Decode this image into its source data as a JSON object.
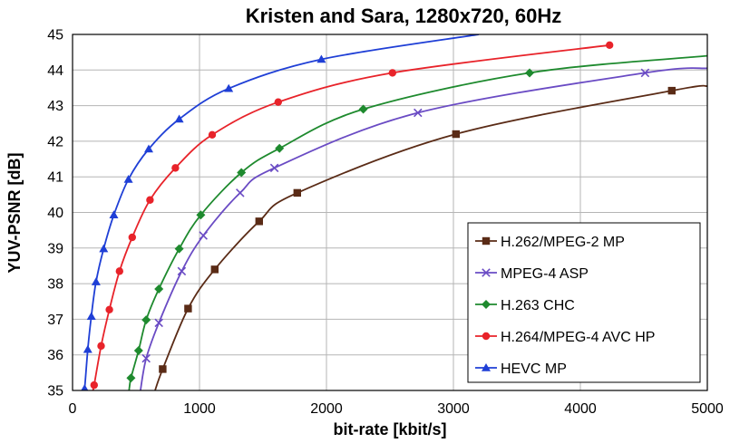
{
  "chart_data": {
    "type": "line",
    "title": "Kristen and Sara, 1280x720, 60Hz",
    "xlabel": "bit-rate [kbit/s]",
    "ylabel": "YUV-PSNR [dB]",
    "xlim": [
      0,
      5000
    ],
    "ylim": [
      35,
      45
    ],
    "xticks": [
      "0",
      "1000",
      "2000",
      "3000",
      "4000",
      "5000"
    ],
    "yticks": [
      "35",
      "36",
      "37",
      "38",
      "39",
      "40",
      "41",
      "42",
      "43",
      "44",
      "45"
    ],
    "grid": true,
    "legend_position": "bottom-right",
    "series": [
      {
        "name": "H.262/MPEG-2 MP",
        "color": "#5a2b16",
        "marker": "square",
        "points": [
          [
            710,
            35.6
          ],
          [
            910,
            37.3
          ],
          [
            1120,
            38.4
          ],
          [
            1470,
            39.75
          ],
          [
            1770,
            40.55
          ],
          [
            3020,
            42.2
          ],
          [
            4720,
            43.42
          ]
        ],
        "curve_start": [
          650,
          35.0
        ],
        "curve_end": [
          5000,
          43.55
        ]
      },
      {
        "name": "MPEG-4 ASP",
        "color": "#6a4bc4",
        "marker": "x",
        "points": [
          [
            580,
            35.9
          ],
          [
            680,
            36.9
          ],
          [
            860,
            38.35
          ],
          [
            1030,
            39.35
          ],
          [
            1320,
            40.55
          ],
          [
            1590,
            41.25
          ],
          [
            2720,
            42.8
          ],
          [
            4510,
            43.92
          ]
        ],
        "curve_start": [
          535,
          35.0
        ],
        "curve_end": [
          5000,
          44.05
        ]
      },
      {
        "name": "H.263 CHC",
        "color": "#1e8a2e",
        "marker": "diamond",
        "points": [
          [
            460,
            35.35
          ],
          [
            520,
            36.12
          ],
          [
            580,
            36.98
          ],
          [
            680,
            37.85
          ],
          [
            840,
            38.98
          ],
          [
            1010,
            39.93
          ],
          [
            1330,
            41.12
          ],
          [
            1630,
            41.8
          ],
          [
            2290,
            42.9
          ],
          [
            3600,
            43.92
          ]
        ],
        "curve_start": [
          445,
          35.0
        ],
        "curve_end": [
          5000,
          44.4
        ]
      },
      {
        "name": "H.264/MPEG-4 AVC HP",
        "color": "#e8232a",
        "marker": "circle",
        "points": [
          [
            170,
            35.15
          ],
          [
            225,
            36.25
          ],
          [
            290,
            37.27
          ],
          [
            370,
            38.35
          ],
          [
            470,
            39.3
          ],
          [
            610,
            40.35
          ],
          [
            810,
            41.25
          ],
          [
            1100,
            42.18
          ],
          [
            1620,
            43.1
          ],
          [
            2520,
            43.92
          ],
          [
            4230,
            44.7
          ]
        ],
        "curve_start": [
          160,
          35.0
        ],
        "curve_end": [
          4230,
          44.7
        ]
      },
      {
        "name": "HEVC MP",
        "color": "#1f3fd6",
        "marker": "triangle",
        "points": [
          [
            95,
            35.05
          ],
          [
            120,
            36.15
          ],
          [
            148,
            37.08
          ],
          [
            185,
            38.05
          ],
          [
            245,
            38.98
          ],
          [
            325,
            39.93
          ],
          [
            440,
            40.93
          ],
          [
            600,
            41.78
          ],
          [
            840,
            42.62
          ],
          [
            1230,
            43.48
          ],
          [
            1960,
            44.3
          ]
        ],
        "curve_start": [
          85,
          35.0
        ],
        "curve_end": [
          3200,
          45.0
        ]
      }
    ]
  }
}
